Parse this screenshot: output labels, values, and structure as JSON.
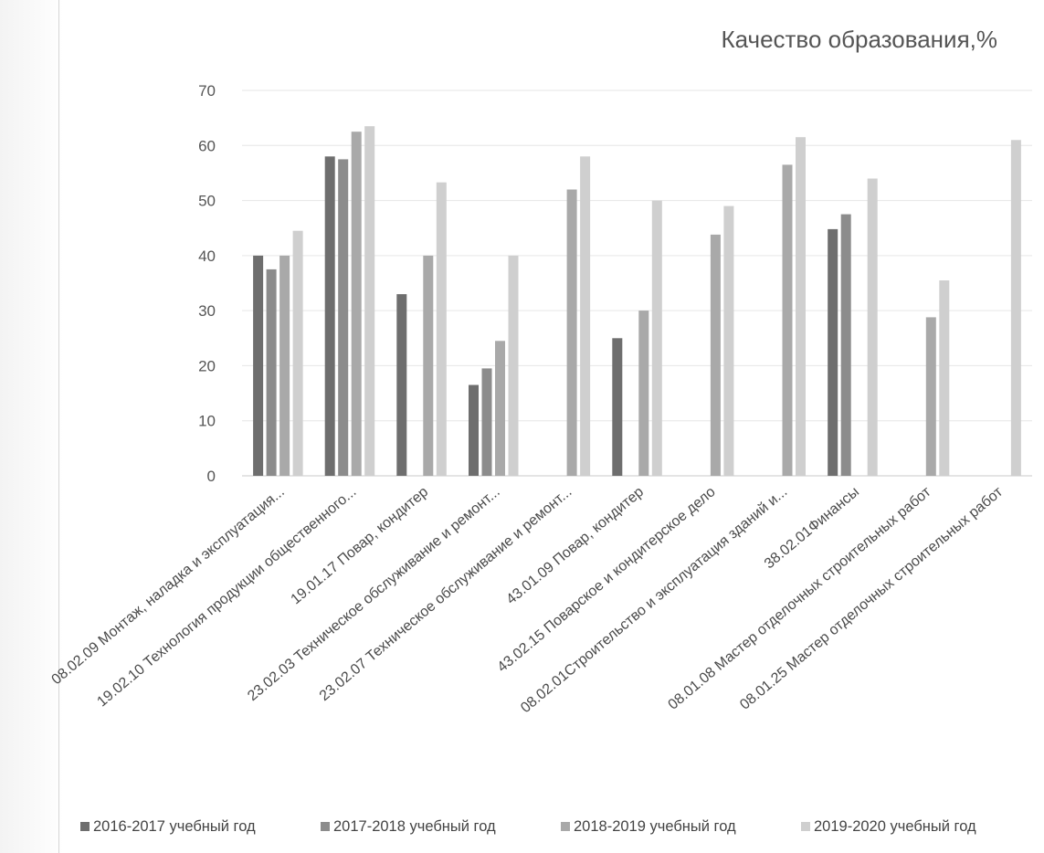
{
  "chart_data": {
    "type": "bar",
    "title": "Качество образования,%",
    "xlabel": "",
    "ylabel": "",
    "ylim": [
      0,
      70
    ],
    "yticks": [
      0,
      10,
      20,
      30,
      40,
      50,
      60,
      70
    ],
    "grid": true,
    "legend_position": "bottom",
    "categories": [
      "08.02.09 Монтаж, наладка и эксплуатация...",
      "19.02.10 Технология продукции общественного...",
      "19.01.17 Повар, кондитер",
      "23.02.03 Техническое обслуживание и ремонт...",
      "23.02.07 Техническое обслуживание и ремонт...",
      "43.01.09 Повар, кондитер",
      "43.02.15 Поварское и кондитерское дело",
      "08.02.01Строительство и эксплуатация зданий и...",
      "38.02.01Финансы",
      "08.01.08 Мастер отделочных строительных работ",
      "08.01.25 Мастер отделочных строительных работ"
    ],
    "series": [
      {
        "name": "2016-2017 учебный год",
        "color": "#6e6e6e",
        "values": [
          40,
          null,
          33,
          16.5,
          null,
          25,
          null,
          null,
          44.8,
          null,
          null
        ]
      },
      {
        "name": "2017-2018 учебный год",
        "color": "#8c8c8c",
        "values": [
          37.5,
          57.5,
          null,
          19.5,
          null,
          null,
          null,
          null,
          47.5,
          null,
          null
        ]
      },
      {
        "name": "2018-2019 учебный год",
        "color": "#a9a9a9",
        "values": [
          40,
          62.5,
          40,
          24.5,
          52,
          30,
          43.8,
          56.5,
          null,
          28.8,
          null
        ]
      },
      {
        "name": "2019-2020 учебный год",
        "color": "#cfcfcf",
        "values": [
          44.5,
          63.5,
          53.3,
          40,
          58,
          50,
          49,
          61.5,
          54,
          35.5,
          61
        ]
      }
    ],
    "series_overrides": {
      "19.02.10": "first bar 58"
    },
    "extra_points": [
      {
        "category_index": 1,
        "series_index": 0,
        "value": 58
      }
    ]
  }
}
